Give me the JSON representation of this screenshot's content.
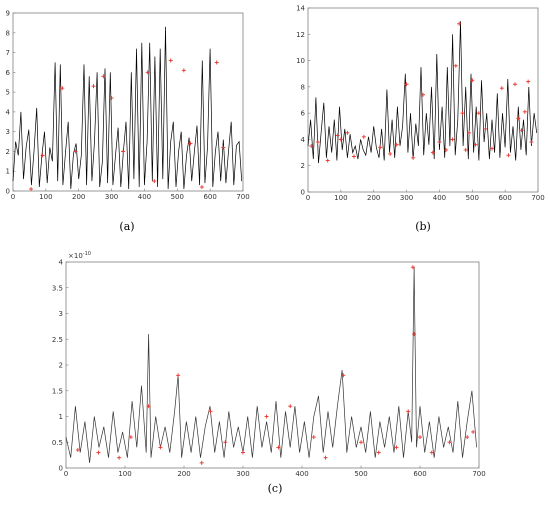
{
  "panels": [
    {
      "caption": "(a)",
      "chart_data": {
        "type": "line",
        "title": "",
        "xlabel": "",
        "ylabel": "",
        "xlim": [
          0,
          700
        ],
        "ylim": [
          0,
          9
        ],
        "xticks": [
          "0",
          "100",
          "200",
          "300",
          "400",
          "500",
          "600",
          "700"
        ],
        "yticks": [
          "0",
          "1",
          "2",
          "3",
          "4",
          "5",
          "6",
          "7",
          "8",
          "9"
        ],
        "grid": false,
        "line_color": "#000000",
        "marker_color": "#e8332a",
        "series": [
          {
            "x": [
              0,
              8,
              16,
              24,
              32,
              40,
              48,
              56,
              64,
              72,
              80,
              88,
              96,
              104,
              112,
              120,
              128,
              136,
              144,
              152,
              160,
              168,
              176,
              184,
              192,
              200,
              208,
              216,
              224,
              232,
              240,
              248,
              256,
              264,
              272,
              280,
              288,
              296,
              304,
              312,
              320,
              328,
              336,
              344,
              352,
              360,
              368,
              376,
              384,
              392,
              400,
              408,
              416,
              424,
              432,
              440,
              448,
              456,
              464,
              472,
              480,
              488,
              496,
              504,
              512,
              520,
              528,
              536,
              544,
              552,
              560,
              568,
              576,
              584,
              592,
              600,
              608,
              616,
              624,
              632,
              640,
              648,
              656,
              664,
              672,
              680,
              688,
              696
            ],
            "y": [
              0.5,
              2.5,
              1.8,
              4.0,
              0.6,
              2.2,
              3.1,
              0.3,
              2.0,
              4.2,
              0.2,
              1.8,
              3.0,
              0.4,
              2.2,
              1.5,
              6.5,
              0.5,
              6.4,
              0.3,
              2.0,
              3.5,
              0.1,
              1.9,
              2.4,
              0.6,
              1.8,
              6.4,
              0.3,
              5.8,
              0.5,
              2.5,
              6.0,
              0.2,
              1.5,
              6.2,
              0.4,
              6.0,
              0.3,
              1.8,
              3.2,
              0.2,
              2.0,
              3.5,
              0.1,
              6.0,
              0.6,
              7.2,
              0.2,
              7.5,
              0.3,
              2.5,
              7.5,
              0.5,
              6.8,
              0.2,
              7.2,
              0.6,
              8.3,
              0.1,
              2.5,
              3.5,
              0.2,
              2.0,
              3.0,
              0.1,
              1.8,
              2.7,
              0.5,
              2.0,
              3.3,
              0.3,
              6.6,
              0.4,
              2.2,
              7.2,
              0.2,
              2.0,
              3.0,
              0.5,
              2.6,
              0.4,
              2.0,
              3.5,
              0.3,
              2.3,
              2.5,
              0.5
            ]
          }
        ],
        "markers": {
          "x": [
            55,
            90,
            150,
            190,
            245,
            275,
            300,
            335,
            410,
            430,
            480,
            520,
            540,
            575,
            620,
            640
          ],
          "y": [
            0.1,
            1.8,
            5.2,
            2.0,
            5.3,
            5.8,
            4.7,
            2.0,
            6.0,
            0.5,
            6.6,
            6.1,
            2.4,
            0.2,
            6.5,
            2.2
          ]
        }
      }
    },
    {
      "caption": "(b)",
      "chart_data": {
        "type": "line",
        "title": "",
        "xlabel": "",
        "ylabel": "",
        "xlim": [
          0,
          700
        ],
        "ylim": [
          0,
          14
        ],
        "xticks": [
          "0",
          "100",
          "200",
          "300",
          "400",
          "500",
          "600",
          "700"
        ],
        "yticks": [
          "0",
          "2",
          "4",
          "6",
          "8",
          "10",
          "12",
          "14"
        ],
        "grid": false,
        "line_color": "#000000",
        "marker_color": "#e8332a",
        "series": [
          {
            "x": [
              0,
              8,
              16,
              24,
              32,
              40,
              48,
              56,
              64,
              72,
              80,
              88,
              96,
              104,
              112,
              120,
              128,
              136,
              144,
              152,
              160,
              168,
              176,
              184,
              192,
              200,
              208,
              216,
              224,
              232,
              240,
              248,
              256,
              264,
              272,
              280,
              288,
              296,
              304,
              312,
              320,
              328,
              336,
              344,
              352,
              360,
              368,
              376,
              384,
              392,
              400,
              408,
              416,
              424,
              432,
              440,
              448,
              456,
              464,
              472,
              480,
              488,
              496,
              504,
              512,
              520,
              528,
              536,
              544,
              552,
              560,
              568,
              576,
              584,
              592,
              600,
              608,
              616,
              624,
              632,
              640,
              648,
              656,
              664,
              672,
              680,
              688,
              696
            ],
            "y": [
              3.5,
              5.5,
              2.5,
              7.2,
              2.2,
              4.5,
              6.8,
              2.6,
              5.0,
              3.0,
              5.5,
              2.4,
              6.5,
              3.2,
              4.8,
              2.6,
              4.4,
              3.0,
              3.5,
              2.5,
              4.0,
              3.2,
              2.8,
              4.2,
              3.0,
              5.0,
              3.4,
              2.6,
              4.8,
              2.4,
              7.8,
              3.0,
              5.5,
              2.6,
              6.5,
              3.5,
              5.0,
              9.0,
              3.0,
              6.0,
              2.5,
              5.2,
              3.5,
              9.5,
              2.8,
              6.0,
              3.6,
              8.0,
              2.5,
              10.5,
              3.2,
              6.5,
              2.6,
              9.5,
              3.5,
              12.0,
              2.8,
              5.5,
              13.0,
              3.5,
              8.0,
              2.5,
              9.0,
              3.0,
              6.5,
              2.4,
              8.5,
              3.8,
              6.0,
              2.5,
              5.5,
              3.0,
              7.5,
              2.6,
              6.0,
              3.4,
              8.6,
              3.0,
              5.0,
              2.4,
              6.5,
              3.2,
              5.5,
              2.8,
              8.0,
              3.5,
              6.0,
              4.5
            ]
          }
        ],
        "markers": {
          "x": [
            10,
            30,
            60,
            90,
            100,
            120,
            140,
            170,
            220,
            250,
            270,
            300,
            320,
            350,
            380,
            400,
            420,
            440,
            450,
            460,
            470,
            480,
            490,
            500,
            510,
            520,
            540,
            560,
            590,
            610,
            630,
            640,
            650,
            660,
            670,
            680
          ],
          "y": [
            3.5,
            3.8,
            2.4,
            4.3,
            4.0,
            4.5,
            2.7,
            4.2,
            3.4,
            2.9,
            3.6,
            8.2,
            2.6,
            7.4,
            3.0,
            3.8,
            3.2,
            4.0,
            9.6,
            12.8,
            6.0,
            3.2,
            4.5,
            8.5,
            3.6,
            6.0,
            4.8,
            3.3,
            7.9,
            2.8,
            8.2,
            5.6,
            4.7,
            6.1,
            8.4,
            3.8
          ]
        }
      }
    },
    {
      "caption": "(c)",
      "chart_data": {
        "type": "line",
        "title": "",
        "xlabel": "",
        "ylabel": "",
        "xlim": [
          0,
          700
        ],
        "ylim": [
          0,
          4
        ],
        "exponent_label": "×10",
        "exponent_value": "-10",
        "xticks": [
          "0",
          "100",
          "200",
          "300",
          "400",
          "500",
          "600",
          "700"
        ],
        "yticks": [
          "0",
          "0.5",
          "1",
          "1.5",
          "2",
          "2.5",
          "3",
          "3.5",
          "4"
        ],
        "grid": false,
        "line_color": "#333333",
        "marker_color": "#e8332a",
        "series": [
          {
            "x": [
              0,
              8,
              16,
              24,
              32,
              40,
              48,
              56,
              64,
              72,
              80,
              88,
              96,
              104,
              112,
              120,
              128,
              136,
              140,
              144,
              152,
              160,
              168,
              176,
              184,
              190,
              196,
              204,
              212,
              220,
              228,
              236,
              244,
              252,
              260,
              268,
              276,
              284,
              292,
              300,
              308,
              316,
              324,
              332,
              340,
              348,
              356,
              364,
              372,
              380,
              388,
              396,
              404,
              412,
              420,
              428,
              436,
              444,
              452,
              460,
              468,
              476,
              484,
              492,
              500,
              508,
              516,
              524,
              532,
              540,
              548,
              556,
              564,
              572,
              580,
              586,
              590,
              594,
              600,
              608,
              616,
              624,
              632,
              640,
              648,
              656,
              664,
              672,
              680,
              688,
              696
            ],
            "y": [
              0.6,
              0.2,
              1.2,
              0.3,
              0.9,
              0.1,
              1.0,
              0.4,
              0.8,
              0.2,
              1.1,
              0.3,
              0.7,
              0.2,
              1.3,
              0.4,
              1.6,
              0.3,
              2.6,
              0.2,
              1.0,
              0.4,
              0.8,
              0.3,
              1.1,
              1.8,
              0.2,
              0.9,
              0.3,
              1.0,
              0.2,
              0.8,
              1.2,
              0.3,
              0.9,
              0.2,
              1.1,
              0.4,
              0.8,
              0.3,
              1.0,
              0.2,
              1.2,
              0.4,
              0.9,
              0.3,
              1.3,
              0.2,
              1.1,
              0.4,
              1.2,
              0.3,
              0.9,
              0.2,
              1.0,
              1.4,
              0.3,
              1.1,
              0.4,
              1.2,
              1.9,
              0.3,
              1.0,
              0.4,
              0.8,
              0.3,
              1.1,
              0.2,
              0.9,
              0.4,
              1.0,
              0.3,
              1.2,
              0.2,
              1.1,
              0.5,
              3.9,
              0.4,
              1.2,
              0.3,
              0.9,
              0.2,
              1.0,
              0.4,
              0.8,
              0.3,
              1.3,
              0.2,
              0.9,
              1.5,
              0.4
            ]
          }
        ],
        "markers": {
          "x": [
            20,
            55,
            90,
            110,
            140,
            160,
            190,
            230,
            245,
            270,
            300,
            340,
            360,
            380,
            420,
            440,
            470,
            500,
            530,
            560,
            580,
            588,
            590,
            600,
            620,
            650,
            680,
            690
          ],
          "y": [
            0.35,
            0.3,
            0.2,
            0.6,
            1.2,
            0.4,
            1.8,
            0.1,
            1.1,
            0.5,
            0.3,
            1.0,
            0.4,
            1.2,
            0.6,
            0.2,
            1.8,
            0.5,
            0.3,
            0.4,
            1.1,
            3.9,
            2.6,
            0.6,
            0.3,
            0.5,
            0.6,
            0.7
          ]
        }
      }
    }
  ]
}
